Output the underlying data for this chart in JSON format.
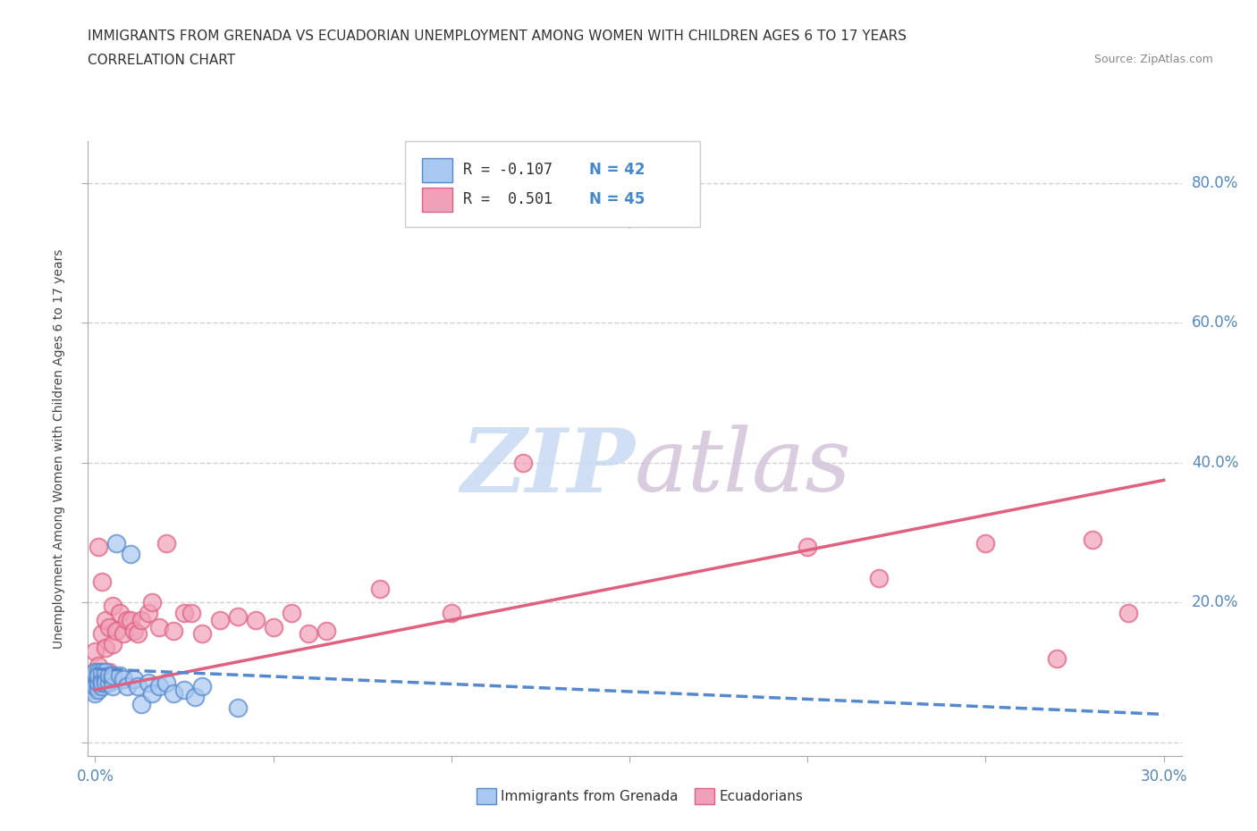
{
  "title_line1": "IMMIGRANTS FROM GRENADA VS ECUADORIAN UNEMPLOYMENT AMONG WOMEN WITH CHILDREN AGES 6 TO 17 YEARS",
  "title_line2": "CORRELATION CHART",
  "source_text": "Source: ZipAtlas.com",
  "ylabel": "Unemployment Among Women with Children Ages 6 to 17 years",
  "xlim": [
    -0.002,
    0.305
  ],
  "ylim": [
    -0.02,
    0.86
  ],
  "xticks": [
    0.0,
    0.05,
    0.1,
    0.15,
    0.2,
    0.25,
    0.3
  ],
  "yticks": [
    0.0,
    0.2,
    0.4,
    0.6,
    0.8
  ],
  "color_blue": "#A8C8F0",
  "color_pink": "#F0A0B8",
  "color_blue_dark": "#5588CC",
  "color_pink_dark": "#E06080",
  "color_blue_line": "#5588CC",
  "color_pink_line": "#E06080",
  "background_color": "#FFFFFF",
  "grid_color": "#CCCCCC",
  "blue_x": [
    0.0,
    0.0,
    0.0,
    0.0,
    0.0,
    0.0,
    0.0,
    0.001,
    0.001,
    0.001,
    0.001,
    0.001,
    0.001,
    0.002,
    0.002,
    0.002,
    0.002,
    0.003,
    0.003,
    0.003,
    0.004,
    0.004,
    0.005,
    0.005,
    0.005,
    0.006,
    0.007,
    0.008,
    0.009,
    0.01,
    0.011,
    0.012,
    0.013,
    0.015,
    0.016,
    0.018,
    0.02,
    0.022,
    0.025,
    0.028,
    0.03,
    0.04
  ],
  "blue_y": [
    0.085,
    0.09,
    0.095,
    0.075,
    0.07,
    0.08,
    0.1,
    0.09,
    0.08,
    0.1,
    0.075,
    0.085,
    0.095,
    0.08,
    0.09,
    0.1,
    0.085,
    0.09,
    0.1,
    0.085,
    0.085,
    0.095,
    0.09,
    0.08,
    0.095,
    0.285,
    0.095,
    0.09,
    0.08,
    0.27,
    0.09,
    0.08,
    0.055,
    0.085,
    0.07,
    0.08,
    0.085,
    0.07,
    0.075,
    0.065,
    0.08,
    0.05
  ],
  "pink_x": [
    0.0,
    0.0,
    0.001,
    0.001,
    0.002,
    0.002,
    0.003,
    0.003,
    0.004,
    0.004,
    0.005,
    0.005,
    0.006,
    0.007,
    0.008,
    0.009,
    0.01,
    0.011,
    0.012,
    0.013,
    0.015,
    0.016,
    0.018,
    0.02,
    0.022,
    0.025,
    0.027,
    0.03,
    0.035,
    0.04,
    0.045,
    0.05,
    0.055,
    0.06,
    0.065,
    0.08,
    0.1,
    0.12,
    0.15,
    0.2,
    0.22,
    0.25,
    0.27,
    0.28,
    0.29
  ],
  "pink_y": [
    0.1,
    0.13,
    0.28,
    0.11,
    0.23,
    0.155,
    0.175,
    0.135,
    0.165,
    0.1,
    0.195,
    0.14,
    0.16,
    0.185,
    0.155,
    0.175,
    0.175,
    0.16,
    0.155,
    0.175,
    0.185,
    0.2,
    0.165,
    0.285,
    0.16,
    0.185,
    0.185,
    0.155,
    0.175,
    0.18,
    0.175,
    0.165,
    0.185,
    0.155,
    0.16,
    0.22,
    0.185,
    0.4,
    0.75,
    0.28,
    0.235,
    0.285,
    0.12,
    0.29,
    0.185
  ],
  "blue_trend_x": [
    0.0,
    0.3
  ],
  "blue_trend_y": [
    0.105,
    0.04
  ],
  "pink_trend_x": [
    0.0,
    0.3
  ],
  "pink_trend_y": [
    0.075,
    0.375
  ]
}
